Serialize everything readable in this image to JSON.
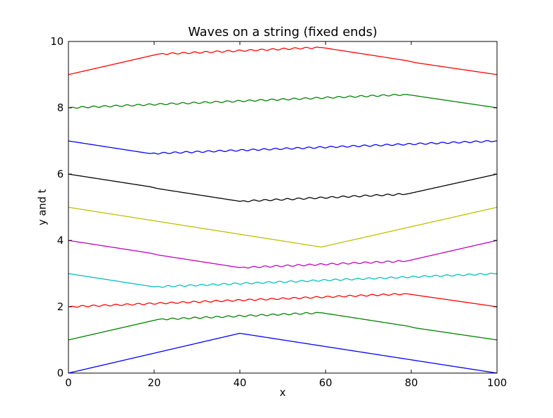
{
  "chart_data": {
    "type": "line",
    "title": "Waves on a string (fixed ends)",
    "xlabel": "x",
    "ylabel": "y and t",
    "xlim": [
      0,
      100
    ],
    "ylim": [
      0,
      10
    ],
    "xticks": [
      "0",
      "20",
      "40",
      "60",
      "80",
      "100"
    ],
    "yticks": [
      "0",
      "2",
      "4",
      "6",
      "8",
      "10"
    ],
    "grid": false,
    "series": [
      {
        "color": "#0000ff",
        "points": [
          [
            0,
            0.0
          ],
          [
            40,
            1.2
          ],
          [
            100,
            0.0
          ]
        ],
        "ripples": []
      },
      {
        "color": "#008000",
        "points": [
          [
            0,
            1.0
          ],
          [
            21,
            1.62
          ],
          [
            59,
            1.82
          ],
          [
            79,
            1.42
          ],
          [
            81,
            1.36
          ],
          [
            100,
            1.0
          ]
        ],
        "ripples": [
          [
            21,
            59
          ]
        ]
      },
      {
        "color": "#ff0000",
        "points": [
          [
            0,
            2.0
          ],
          [
            79,
            2.39
          ],
          [
            100,
            2.0
          ]
        ],
        "ripples": [
          [
            0,
            79
          ]
        ]
      },
      {
        "color": "#00bfbf",
        "points": [
          [
            0,
            3.0
          ],
          [
            20,
            2.6
          ],
          [
            100,
            3.0
          ]
        ],
        "ripples": [
          [
            20,
            100
          ]
        ]
      },
      {
        "color": "#bf00bf",
        "points": [
          [
            0,
            4.0
          ],
          [
            19,
            3.62
          ],
          [
            21,
            3.56
          ],
          [
            40,
            3.18
          ],
          [
            79,
            3.38
          ],
          [
            100,
            4.0
          ]
        ],
        "ripples": [
          [
            40,
            79
          ]
        ]
      },
      {
        "color": "#bfbf00",
        "points": [
          [
            0,
            5.0
          ],
          [
            59,
            3.8
          ],
          [
            100,
            5.0
          ]
        ],
        "ripples": []
      },
      {
        "color": "#000000",
        "points": [
          [
            0,
            6.0
          ],
          [
            19,
            5.62
          ],
          [
            21,
            5.56
          ],
          [
            40,
            5.18
          ],
          [
            79,
            5.4
          ],
          [
            100,
            6.0
          ]
        ],
        "ripples": [
          [
            40,
            79
          ]
        ]
      },
      {
        "color": "#0000ff",
        "points": [
          [
            0,
            7.0
          ],
          [
            19,
            6.62
          ],
          [
            100,
            7.0
          ]
        ],
        "ripples": [
          [
            19,
            100
          ]
        ]
      },
      {
        "color": "#008000",
        "points": [
          [
            0,
            8.0
          ],
          [
            79,
            8.4
          ],
          [
            100,
            8.0
          ]
        ],
        "ripples": [
          [
            0,
            79
          ]
        ]
      },
      {
        "color": "#ff0000",
        "points": [
          [
            0,
            9.0
          ],
          [
            21,
            9.62
          ],
          [
            59,
            9.82
          ],
          [
            79,
            9.42
          ],
          [
            81,
            9.36
          ],
          [
            100,
            9.0
          ]
        ],
        "ripples": [
          [
            21,
            59
          ]
        ]
      }
    ]
  }
}
